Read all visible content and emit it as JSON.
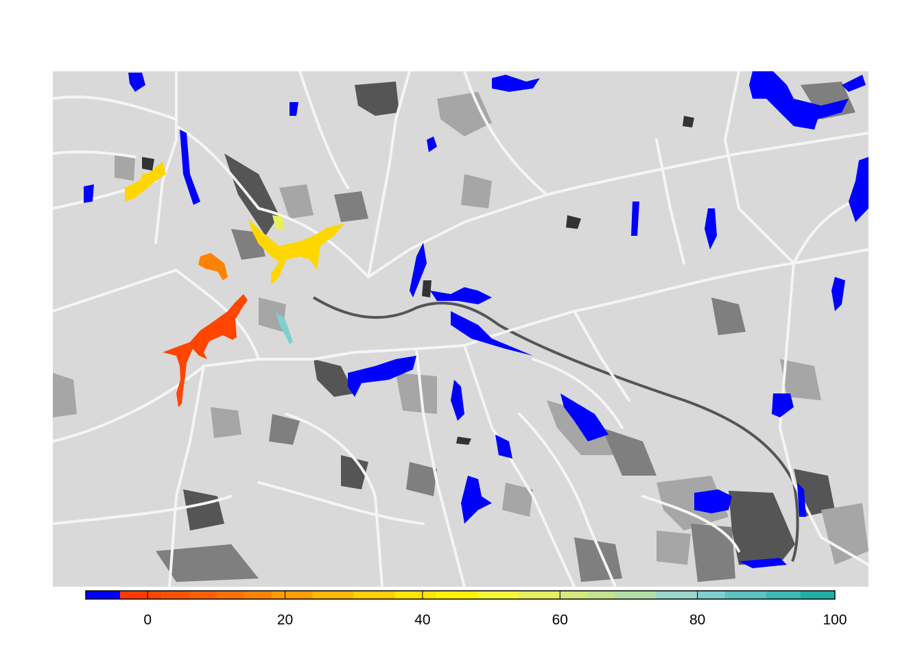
{
  "map": {
    "palette": {
      "background": "#d9d9d9",
      "roads": "#f5f5f5",
      "gray_1": "#bdbdbd",
      "gray_2": "#a6a6a6",
      "gray_3": "#7f7f7f",
      "gray_4": "#555555",
      "gray_5": "#333333"
    }
  },
  "legend": {
    "min": -9,
    "max": 100,
    "ticks": [
      "0",
      "20",
      "40",
      "60",
      "80",
      "100"
    ],
    "tick_values": [
      0,
      20,
      40,
      60,
      80,
      100
    ],
    "segments": [
      {
        "from": -9,
        "to": -4,
        "color": "#0000ff"
      },
      {
        "from": -4,
        "to": 0,
        "color": "#ff3b00"
      },
      {
        "from": 0,
        "to": 2,
        "color": "#ff4500"
      },
      {
        "from": 2,
        "to": 6,
        "color": "#ff5200"
      },
      {
        "from": 6,
        "to": 10,
        "color": "#ff6100"
      },
      {
        "from": 10,
        "to": 14,
        "color": "#ff7100"
      },
      {
        "from": 14,
        "to": 18,
        "color": "#ff8300"
      },
      {
        "from": 18,
        "to": 24,
        "color": "#ff9c00"
      },
      {
        "from": 24,
        "to": 30,
        "color": "#ffb700"
      },
      {
        "from": 30,
        "to": 36,
        "color": "#ffcf00"
      },
      {
        "from": 36,
        "to": 42,
        "color": "#ffe600"
      },
      {
        "from": 42,
        "to": 48,
        "color": "#fff300"
      },
      {
        "from": 48,
        "to": 54,
        "color": "#f5f53a"
      },
      {
        "from": 54,
        "to": 60,
        "color": "#e6ef5e"
      },
      {
        "from": 60,
        "to": 64,
        "color": "#d6ea7c"
      },
      {
        "from": 64,
        "to": 68,
        "color": "#c6e48f"
      },
      {
        "from": 68,
        "to": 74,
        "color": "#b3dfa6"
      },
      {
        "from": 74,
        "to": 80,
        "color": "#9bd6c9"
      },
      {
        "from": 80,
        "to": 84,
        "color": "#7fcfcf"
      },
      {
        "from": 84,
        "to": 90,
        "color": "#5bc4c2"
      },
      {
        "from": 90,
        "to": 95,
        "color": "#3db8b3"
      },
      {
        "from": 95,
        "to": 100,
        "color": "#1fafa6"
      }
    ]
  }
}
